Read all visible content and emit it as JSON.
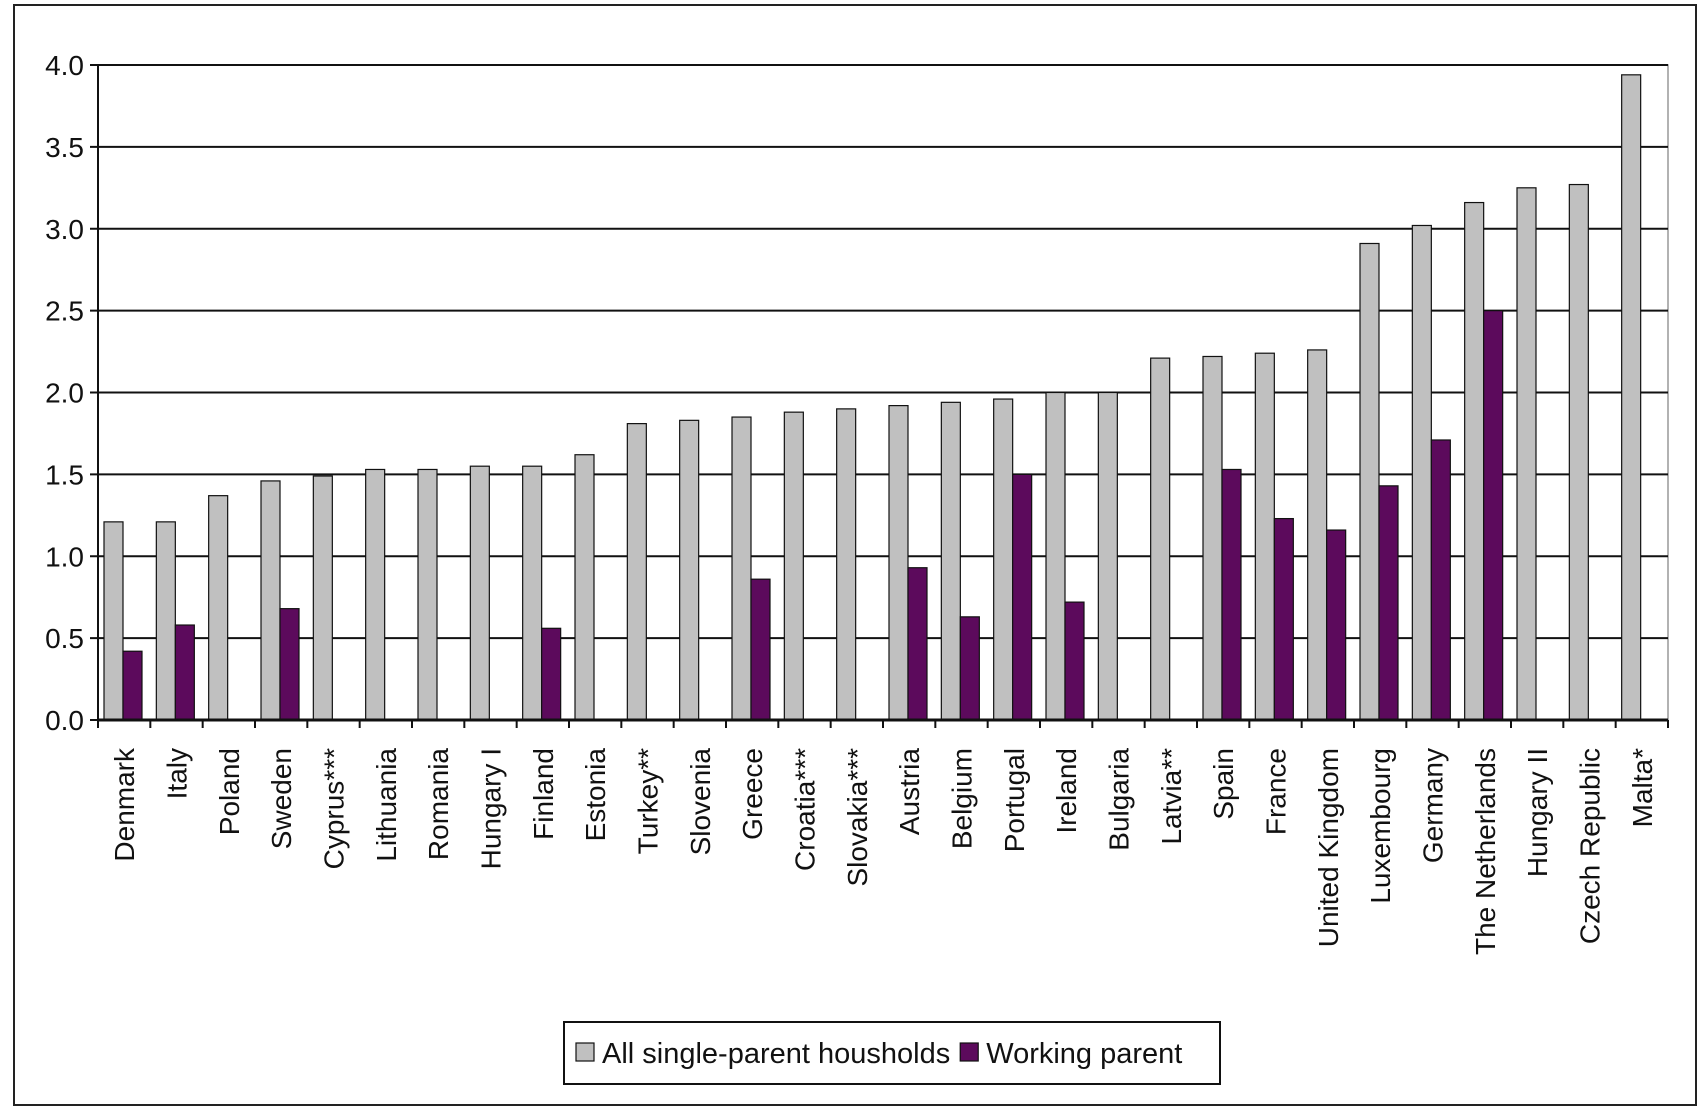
{
  "chart_data": {
    "type": "bar",
    "categories": [
      "Denmark",
      "Italy",
      "Poland",
      "Sweden",
      "Cyprus***",
      "Lithuania",
      "Romania",
      "Hungary I",
      "Finland",
      "Estonia",
      "Turkey**",
      "Slovenia",
      "Greece",
      "Croatia***",
      "Slovakia***",
      "Austria",
      "Belgium",
      "Portugal",
      "Ireland",
      "Bulgaria",
      "Latvia**",
      "Spain",
      "France",
      "United Kingdom",
      "Luxembourg",
      "Germany",
      "The Netherlands",
      "Hungary II",
      "Czech Republic",
      "Malta*"
    ],
    "series": [
      {
        "name": "All single-parent housholds",
        "color": "#c0c0c0",
        "values": [
          1.21,
          1.21,
          1.37,
          1.46,
          1.49,
          1.53,
          1.53,
          1.55,
          1.55,
          1.62,
          1.81,
          1.83,
          1.85,
          1.88,
          1.9,
          1.92,
          1.94,
          1.96,
          2.0,
          2.0,
          2.21,
          2.22,
          2.24,
          2.26,
          2.91,
          3.02,
          3.16,
          3.25,
          3.27,
          3.94
        ]
      },
      {
        "name": "Working parent",
        "color": "#5c0a5c",
        "values": [
          0.42,
          0.58,
          null,
          0.68,
          null,
          null,
          null,
          null,
          0.56,
          null,
          null,
          null,
          0.86,
          null,
          null,
          0.93,
          0.63,
          1.5,
          0.72,
          null,
          null,
          1.53,
          1.23,
          1.16,
          1.43,
          1.71,
          2.5,
          null,
          null,
          null
        ]
      }
    ],
    "title": "",
    "xlabel": "",
    "ylabel": "",
    "ylim": [
      0,
      4.0
    ],
    "yticks": [
      "0.0",
      "0.5",
      "1.0",
      "1.5",
      "2.0",
      "2.5",
      "3.0",
      "3.5",
      "4.0"
    ],
    "grid": true,
    "legend_position": "bottom-center"
  }
}
